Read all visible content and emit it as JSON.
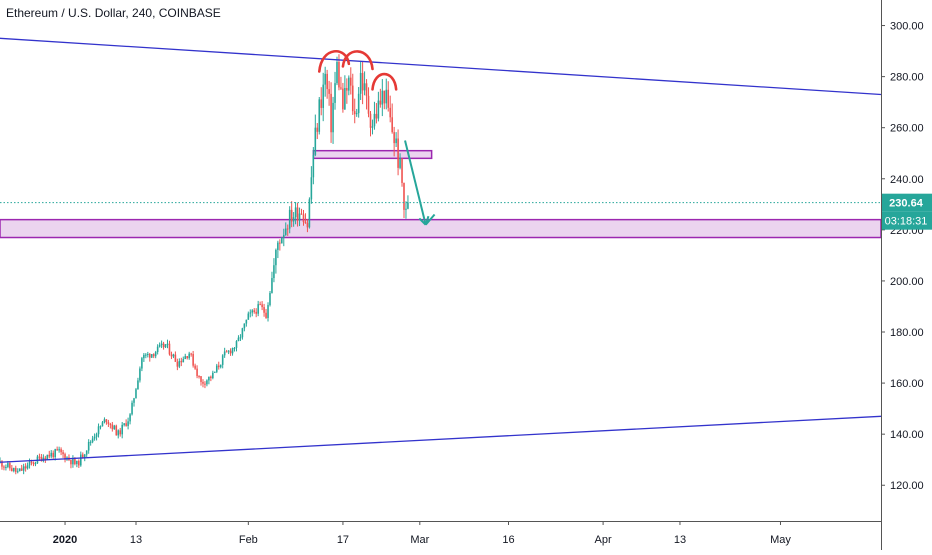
{
  "chart_data": {
    "type": "candlestick",
    "title": "Ethereum / U.S. Dollar, 240, COINBASE",
    "y_axis": {
      "ticks": [
        "300.00",
        "280.00",
        "260.00",
        "240.00",
        "220.00",
        "200.00",
        "180.00",
        "160.00",
        "140.00",
        "120.00"
      ],
      "tick_values": [
        300,
        280,
        260,
        240,
        220,
        200,
        180,
        160,
        140,
        120
      ],
      "range": [
        106,
        310
      ],
      "position": "right"
    },
    "x_axis": {
      "ticks": [
        "2020",
        "13",
        "Feb",
        "17",
        "Mar",
        "16",
        "Apr",
        "13",
        "May"
      ],
      "bold_ticks": [
        "2020"
      ],
      "tick_days": [
        1,
        13,
        32,
        48,
        61,
        76,
        92,
        105,
        122
      ],
      "range_days": [
        -10,
        139
      ]
    },
    "price_label": {
      "value": "230.64",
      "color": "#26a69a"
    },
    "countdown_label": {
      "value": "03:18:31",
      "color": "#26a69a"
    },
    "current_price": 230.64,
    "price_path": [
      {
        "day": -10,
        "price": 129
      },
      {
        "day": -7,
        "price": 125
      },
      {
        "day": -3,
        "price": 131
      },
      {
        "day": 0,
        "price": 133
      },
      {
        "day": 3,
        "price": 128
      },
      {
        "day": 6,
        "price": 140
      },
      {
        "day": 8,
        "price": 146
      },
      {
        "day": 10,
        "price": 140
      },
      {
        "day": 12,
        "price": 147
      },
      {
        "day": 14,
        "price": 170
      },
      {
        "day": 16,
        "price": 172
      },
      {
        "day": 18,
        "price": 175
      },
      {
        "day": 20,
        "price": 168
      },
      {
        "day": 22,
        "price": 172
      },
      {
        "day": 24,
        "price": 160
      },
      {
        "day": 26,
        "price": 163
      },
      {
        "day": 28,
        "price": 171
      },
      {
        "day": 30,
        "price": 175
      },
      {
        "day": 32,
        "price": 186
      },
      {
        "day": 34,
        "price": 190
      },
      {
        "day": 35,
        "price": 187
      },
      {
        "day": 37,
        "price": 215
      },
      {
        "day": 39,
        "price": 225
      },
      {
        "day": 41,
        "price": 228
      },
      {
        "day": 42,
        "price": 222
      },
      {
        "day": 43,
        "price": 250
      },
      {
        "day": 44,
        "price": 268
      },
      {
        "day": 45,
        "price": 280
      },
      {
        "day": 46,
        "price": 262
      },
      {
        "day": 47,
        "price": 284
      },
      {
        "day": 48,
        "price": 268
      },
      {
        "day": 49,
        "price": 278
      },
      {
        "day": 50,
        "price": 264
      },
      {
        "day": 51,
        "price": 281
      },
      {
        "day": 52,
        "price": 270
      },
      {
        "day": 53,
        "price": 262
      },
      {
        "day": 54,
        "price": 268
      },
      {
        "day": 55,
        "price": 274
      },
      {
        "day": 56,
        "price": 262
      },
      {
        "day": 57,
        "price": 253
      },
      {
        "day": 58,
        "price": 238
      },
      {
        "day": 58.5,
        "price": 224
      },
      {
        "day": 59,
        "price": 230.64
      }
    ],
    "annotations": [
      {
        "type": "trendline",
        "name": "upper-trendline",
        "from": {
          "day": -10,
          "price": 295
        },
        "to": {
          "day": 139,
          "price": 273
        },
        "color": "#3333cc"
      },
      {
        "type": "trendline",
        "name": "lower-trendline",
        "from": {
          "day": -10,
          "price": 129
        },
        "to": {
          "day": 139,
          "price": 147
        },
        "color": "#3333cc"
      },
      {
        "type": "zone",
        "name": "neckline-zone",
        "from": {
          "day": 43,
          "price": 251
        },
        "to": {
          "day": 63,
          "price": 248
        },
        "color": "#9c27b0"
      },
      {
        "type": "zone",
        "name": "support-zone",
        "from": {
          "day": -10,
          "price": 224
        },
        "to": {
          "day": 139,
          "price": 217
        },
        "color": "#9c27b0"
      },
      {
        "type": "arc",
        "name": "left-shoulder-arc",
        "from": {
          "day": 44,
          "price": 282
        },
        "to": {
          "day": 49,
          "price": 285
        },
        "peak": 292,
        "color": "#e53935"
      },
      {
        "type": "arc",
        "name": "head-arc",
        "from": {
          "day": 48,
          "price": 284
        },
        "to": {
          "day": 53,
          "price": 283
        },
        "peak": 292,
        "color": "#e53935"
      },
      {
        "type": "arc",
        "name": "right-shoulder-arc",
        "from": {
          "day": 53,
          "price": 275
        },
        "to": {
          "day": 57,
          "price": 275
        },
        "peak": 283,
        "color": "#e53935"
      },
      {
        "type": "arrow",
        "name": "projection-arrow",
        "points": [
          {
            "day": 58.5,
            "price": 255
          },
          {
            "day": 62,
            "price": 222
          },
          {
            "day": 63.5,
            "price": 226
          }
        ],
        "color": "#26a69a"
      }
    ],
    "grid": false,
    "legend": "none"
  }
}
